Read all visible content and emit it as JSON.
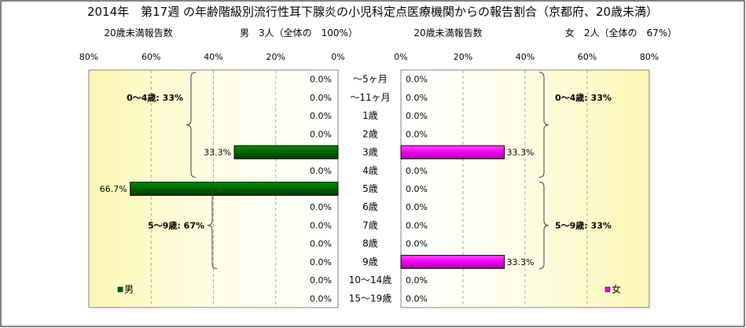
{
  "title": "2014年　第17週 の年齢階級別流行性耳下腺炎の小児科定点医療機関からの報告割合（京都府、20歳未満）",
  "left_header": {
    "caption": "20歳未満報告数",
    "summary": "男　3人（全体の　100%）"
  },
  "right_header": {
    "caption": "20歳未満報告数",
    "summary": "女　2人（全体の　67%）"
  },
  "chart_data": {
    "type": "bar",
    "orientation": "horizontal",
    "layout": "population-pyramid",
    "title": "2014年　第17週 の年齢階級別流行性耳下腺炎の小児科定点医療機関からの報告割合（京都府、20歳未満）",
    "categories": [
      "～5ヶ月",
      "～11ヶ月",
      "1歳",
      "2歳",
      "3歳",
      "4歳",
      "5歳",
      "6歳",
      "7歳",
      "8歳",
      "9歳",
      "10～14歳",
      "15～19歳"
    ],
    "x_ticks": [
      "80%",
      "60%",
      "40%",
      "20%",
      "0%"
    ],
    "x_ticks_right": [
      "0%",
      "20%",
      "40%",
      "60%",
      "80%"
    ],
    "xlim": [
      0,
      80
    ],
    "series": [
      {
        "name": "男",
        "side": "left",
        "color": "#006400",
        "values": [
          0,
          0,
          0,
          0,
          33.3,
          0,
          66.7,
          0,
          0,
          0,
          0,
          0,
          0
        ],
        "labels": [
          "0.0%",
          "0.0%",
          "0.0%",
          "0.0%",
          "33.3%",
          "0.0%",
          "66.7%",
          "0.0%",
          "0.0%",
          "0.0%",
          "0.0%",
          "0.0%",
          "0.0%"
        ]
      },
      {
        "name": "女",
        "side": "right",
        "color": "#ff00ff",
        "values": [
          0,
          0,
          0,
          0,
          33.3,
          0,
          0,
          0,
          0,
          0,
          33.3,
          0,
          0
        ],
        "labels": [
          "0.0%",
          "0.0%",
          "0.0%",
          "0.0%",
          "33.3%",
          "0.0%",
          "0.0%",
          "0.0%",
          "0.0%",
          "0.0%",
          "33.3%",
          "0.0%",
          "0.0%"
        ]
      }
    ],
    "group_annotations": [
      {
        "side": "left",
        "text": "0～4歳: 33%",
        "from": 0,
        "to": 5
      },
      {
        "side": "left",
        "text": "5～9歳: 67%",
        "from": 6,
        "to": 10
      },
      {
        "side": "right",
        "text": "0～4歳: 33%",
        "from": 0,
        "to": 5
      },
      {
        "side": "right",
        "text": "5～9歳: 33%",
        "from": 6,
        "to": 10
      }
    ],
    "legend": [
      {
        "label": "男",
        "color": "#006400",
        "position": "bottom-left"
      },
      {
        "label": "女",
        "color": "#ff00ff",
        "position": "bottom-right"
      }
    ],
    "plot_background": "yellow gradient",
    "grid": "vertical dashed"
  }
}
